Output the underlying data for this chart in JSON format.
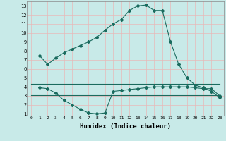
{
  "line1_x": [
    1,
    2,
    3,
    4,
    5,
    6,
    7,
    8,
    9,
    10,
    11,
    12,
    13,
    14,
    15,
    16,
    17,
    18,
    19,
    20,
    21,
    22,
    23
  ],
  "line1_y": [
    7.5,
    6.5,
    7.2,
    7.8,
    8.2,
    8.6,
    9.0,
    9.5,
    10.3,
    11.0,
    11.5,
    12.5,
    13.0,
    13.1,
    12.5,
    12.5,
    9.0,
    6.5,
    5.0,
    4.2,
    3.9,
    3.5,
    2.8
  ],
  "line2_x": [
    1,
    2,
    3,
    4,
    5,
    6,
    7,
    8,
    9,
    10,
    11,
    12,
    13,
    14,
    15,
    16,
    17,
    18,
    19,
    20,
    21,
    22,
    23
  ],
  "line2_y": [
    3.9,
    3.8,
    3.3,
    2.5,
    2.0,
    1.5,
    1.1,
    1.0,
    1.1,
    3.5,
    3.6,
    3.7,
    3.8,
    3.9,
    4.0,
    4.0,
    4.0,
    4.0,
    4.0,
    3.9,
    3.8,
    3.8,
    3.0
  ],
  "line3_x": [
    0,
    23
  ],
  "line3_y": [
    4.3,
    4.3
  ],
  "line4_x": [
    0,
    23
  ],
  "line4_y": [
    3.1,
    3.1
  ],
  "line_color": "#1a6b5e",
  "bg_color": "#c8eae8",
  "grid_color": "#e8b8b8",
  "xlabel": "Humidex (Indice chaleur)",
  "xlim": [
    -0.5,
    23.5
  ],
  "ylim": [
    0.8,
    13.5
  ],
  "xticks": [
    0,
    1,
    2,
    3,
    4,
    5,
    6,
    7,
    8,
    9,
    10,
    11,
    12,
    13,
    14,
    15,
    16,
    17,
    18,
    19,
    20,
    21,
    22,
    23
  ],
  "yticks": [
    1,
    2,
    3,
    4,
    5,
    6,
    7,
    8,
    9,
    10,
    11,
    12,
    13
  ]
}
